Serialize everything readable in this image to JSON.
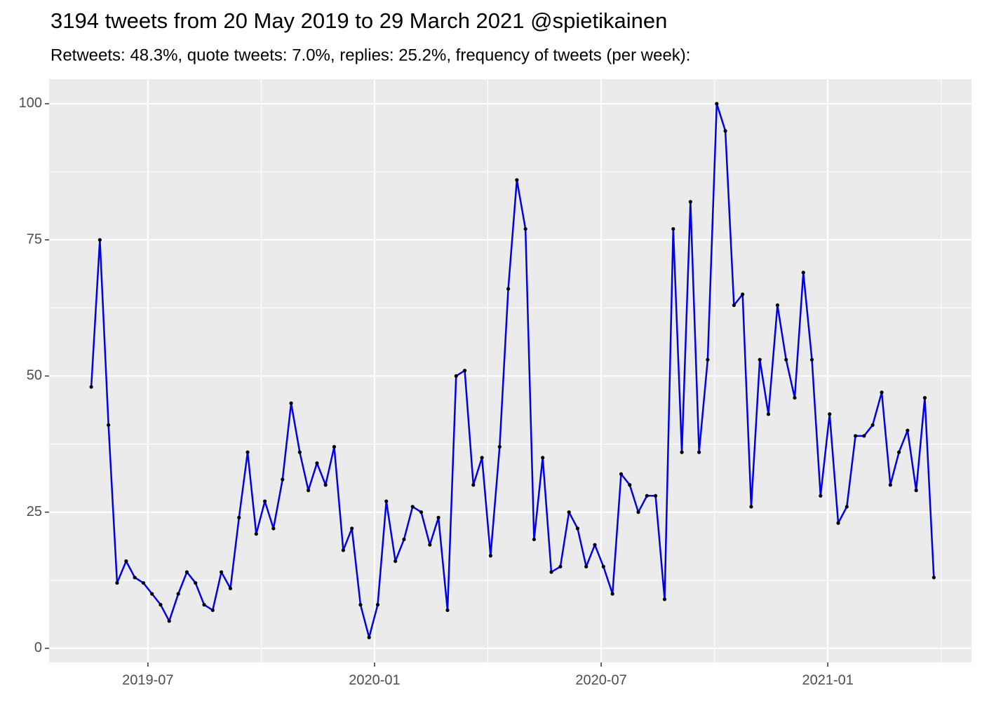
{
  "chart_data": {
    "type": "line",
    "title": "3194 tweets from 20 May 2019 to 29 March 2021 @spietikainen",
    "subtitle": "Retweets: 48.3%, quote tweets: 7.0%, replies: 25.2%, frequency of tweets (per week):",
    "x": [
      2019.375,
      2019.394,
      2019.413,
      2019.432,
      2019.452,
      2019.471,
      2019.49,
      2019.509,
      2019.528,
      2019.547,
      2019.567,
      2019.586,
      2019.605,
      2019.624,
      2019.643,
      2019.662,
      2019.682,
      2019.701,
      2019.72,
      2019.739,
      2019.758,
      2019.777,
      2019.797,
      2019.816,
      2019.835,
      2019.854,
      2019.873,
      2019.892,
      2019.911,
      2019.931,
      2019.95,
      2019.969,
      2019.988,
      2020.007,
      2020.026,
      2020.046,
      2020.065,
      2020.084,
      2020.103,
      2020.122,
      2020.141,
      2020.161,
      2020.18,
      2020.199,
      2020.218,
      2020.237,
      2020.256,
      2020.276,
      2020.295,
      2020.314,
      2020.333,
      2020.352,
      2020.371,
      2020.39,
      2020.41,
      2020.429,
      2020.448,
      2020.467,
      2020.486,
      2020.505,
      2020.525,
      2020.544,
      2020.563,
      2020.582,
      2020.601,
      2020.62,
      2020.64,
      2020.659,
      2020.678,
      2020.697,
      2020.716,
      2020.735,
      2020.755,
      2020.774,
      2020.793,
      2020.812,
      2020.831,
      2020.85,
      2020.869,
      2020.889,
      2020.908,
      2020.927,
      2020.946,
      2020.965,
      2020.984,
      2021.004,
      2021.023,
      2021.042,
      2021.061,
      2021.08,
      2021.099,
      2021.119,
      2021.138,
      2021.157,
      2021.176,
      2021.195,
      2021.214,
      2021.234
    ],
    "series": [
      {
        "color": "#0000e6",
        "marker_color": "#000000",
        "values": [
          48,
          75,
          41,
          12,
          16,
          13,
          12,
          10,
          8,
          5,
          10,
          14,
          12,
          8,
          7,
          14,
          11,
          24,
          36,
          21,
          27,
          22,
          31,
          45,
          36,
          29,
          34,
          30,
          37,
          18,
          22,
          8,
          2,
          8,
          27,
          16,
          20,
          26,
          25,
          19,
          24,
          7,
          50,
          51,
          30,
          35,
          17,
          37,
          66,
          86,
          77,
          20,
          35,
          14,
          15,
          25,
          22,
          15,
          19,
          15,
          10,
          32,
          30,
          25,
          28,
          28,
          9,
          77,
          36,
          82,
          36,
          53,
          100,
          95,
          63,
          65,
          26,
          53,
          43,
          63,
          53,
          46,
          69,
          53,
          28,
          43,
          23,
          26,
          39,
          39,
          41,
          47,
          30,
          36,
          40,
          29,
          46,
          13
        ]
      }
    ],
    "xlim": [
      2019.282,
      2021.317
    ],
    "xticks": [
      {
        "value": 2019.5,
        "label": "2019-07"
      },
      {
        "value": 2020.0,
        "label": "2020-01"
      },
      {
        "value": 2020.5,
        "label": "2020-07"
      },
      {
        "value": 2021.0,
        "label": "2021-01"
      }
    ],
    "ylim": [
      -2.6,
      104.5
    ],
    "yticks": [
      0,
      25,
      50,
      75,
      100
    ],
    "grid": true,
    "panel_color": "#ebebeb"
  }
}
